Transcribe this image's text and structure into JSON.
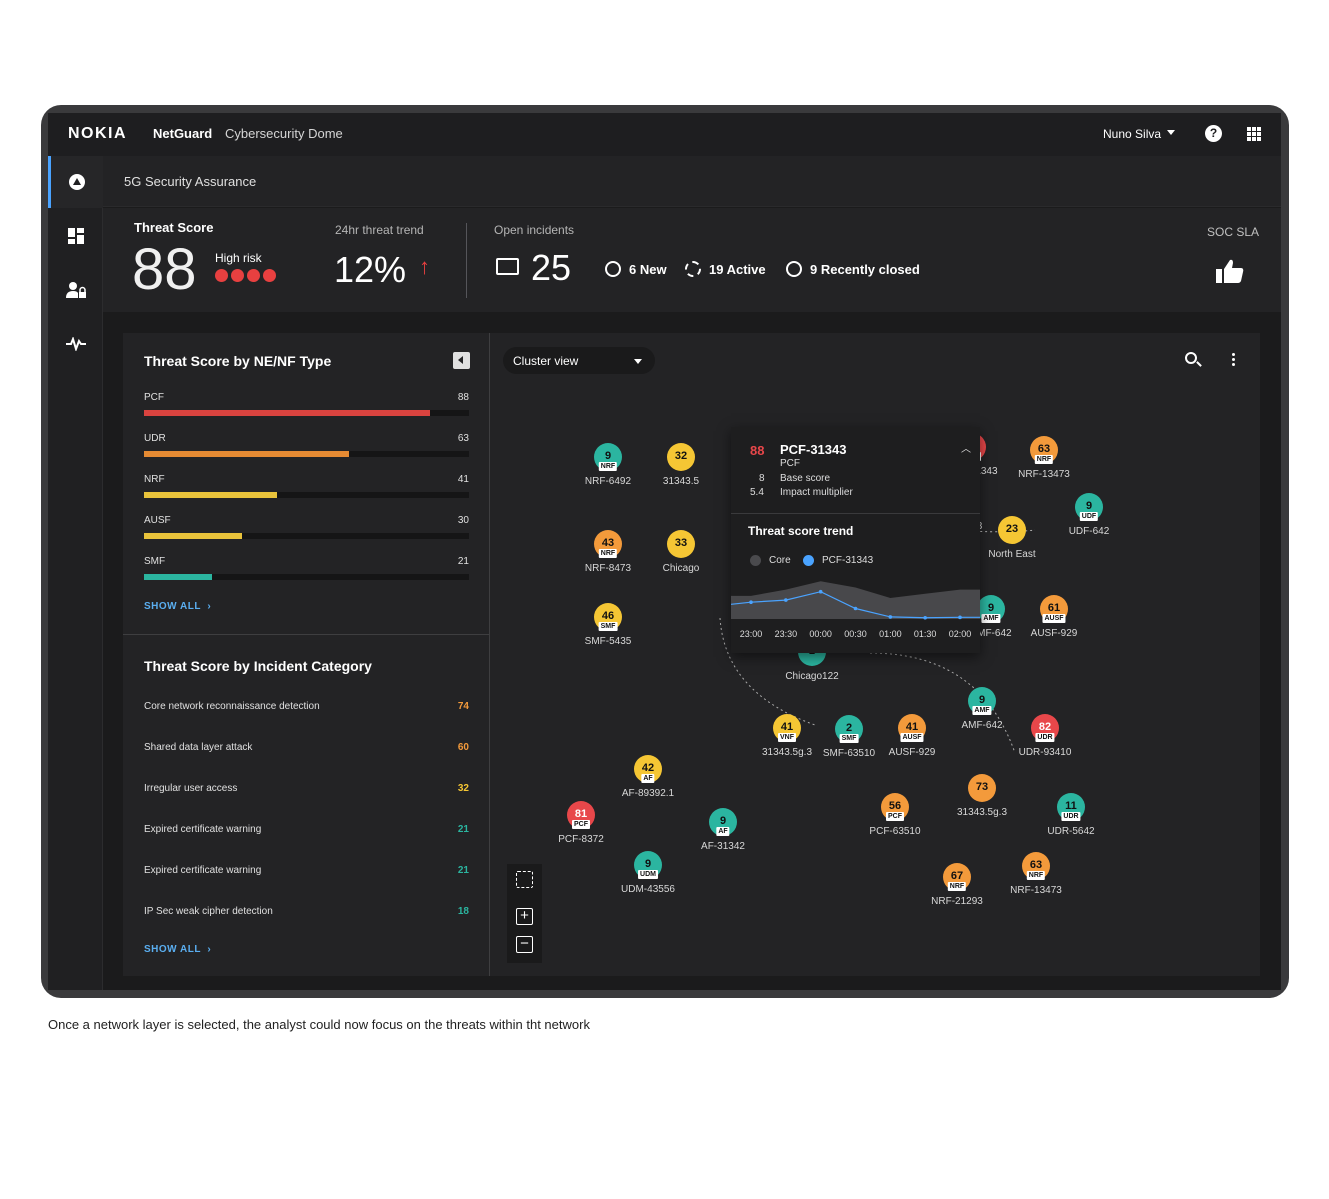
{
  "app": {
    "logo": "NOKIA",
    "product": "NetGuard",
    "product_sub": "Cybersecurity Dome",
    "user": "Nuno Silva",
    "help": "?"
  },
  "page": {
    "title": "5G Security Assurance"
  },
  "kpis": {
    "threat_score_label": "Threat Score",
    "threat_score": "88",
    "risk_label": "High risk",
    "trend_label": "24hr threat trend",
    "trend_value": "12%",
    "trend_arrow": "↑",
    "open_label": "Open incidents",
    "open_value": "25",
    "new": "6 New",
    "active": "19 Active",
    "closed": "9 Recently closed",
    "sla_label": "SOC SLA"
  },
  "ne_panel": {
    "title": "Threat Score by NE/NF Type",
    "show_all": "SHOW ALL",
    "rows": [
      {
        "label": "PCF",
        "value": 88,
        "color": "#d9433f"
      },
      {
        "label": "UDR",
        "value": 63,
        "color": "#e58a33"
      },
      {
        "label": "NRF",
        "value": 41,
        "color": "#e9c33b"
      },
      {
        "label": "AUSF",
        "value": 30,
        "color": "#e9c33b"
      },
      {
        "label": "SMF",
        "value": 21,
        "color": "#2bb5a0"
      }
    ]
  },
  "cat_panel": {
    "title": "Threat Score by Incident Category",
    "show_all": "SHOW ALL",
    "rows": [
      {
        "label": "Core network reconnaissance detection",
        "value": "74",
        "color": "#f39a3b"
      },
      {
        "label": "Shared data layer attack",
        "value": "60",
        "color": "#f39a3b"
      },
      {
        "label": "Irregular user access",
        "value": "32",
        "color": "#f5c634"
      },
      {
        "label": "Expired certificate warning",
        "value": "21",
        "color": "#2bb5a0"
      },
      {
        "label": "Expired certificate warning",
        "value": "21",
        "color": "#2bb5a0"
      },
      {
        "label": "IP Sec weak cipher detection",
        "value": "18",
        "color": "#2bb5a0"
      }
    ]
  },
  "map": {
    "view": "Cluster view",
    "zoom_in": "+",
    "zoom_out": "−",
    "nodes": [
      {
        "score": "9",
        "type": "NRF",
        "label": "NRF-6492",
        "color": "teal"
      },
      {
        "score": "32",
        "type": "",
        "label": "31343.5",
        "color": "yellow"
      },
      {
        "score": "43",
        "type": "NRF",
        "label": "NRF-8473",
        "color": "orange"
      },
      {
        "score": "33",
        "type": "",
        "label": "Chicago",
        "color": "yellow"
      },
      {
        "score": "46",
        "type": "SMF",
        "label": "SMF-5435",
        "color": "yellow"
      },
      {
        "score": "88",
        "type": "PCF",
        "label": "PCF-31343",
        "color": "red"
      },
      {
        "score": "63",
        "type": "NRF",
        "label": "NRF-13473",
        "color": "orange"
      },
      {
        "score": "9",
        "type": "UDF",
        "label": "UDF-642",
        "color": "teal"
      },
      {
        "score": "23",
        "type": "",
        "label": "North East",
        "color": "yellow"
      },
      {
        "score": "9",
        "type": "AMF",
        "label": "AMF-642",
        "color": "teal"
      },
      {
        "score": "61",
        "type": "AUSF",
        "label": "AUSF-929",
        "color": "orange"
      },
      {
        "score": "2",
        "type": "",
        "label": "Chicago122",
        "color": "teal"
      },
      {
        "score": "41",
        "type": "VNF",
        "label": "31343.5g.3",
        "color": "yellow"
      },
      {
        "score": "2",
        "type": "SMF",
        "label": "SMF-63510",
        "color": "teal"
      },
      {
        "score": "41",
        "type": "AUSF",
        "label": "AUSF-929",
        "color": "orange"
      },
      {
        "score": "9",
        "type": "AMF",
        "label": "AMF-642",
        "color": "teal"
      },
      {
        "score": "82",
        "type": "UDR",
        "label": "UDR-93410",
        "color": "red"
      },
      {
        "score": "42",
        "type": "AF",
        "label": "AF-89392.1",
        "color": "yellow"
      },
      {
        "score": "81",
        "type": "PCF",
        "label": "PCF-8372",
        "color": "red"
      },
      {
        "score": "9",
        "type": "AF",
        "label": "AF-31342",
        "color": "teal"
      },
      {
        "score": "56",
        "type": "PCF",
        "label": "PCF-63510",
        "color": "orange"
      },
      {
        "score": "73",
        "type": "",
        "label": "31343.5g.3",
        "color": "orange"
      },
      {
        "score": "11",
        "type": "UDR",
        "label": "UDR-5642",
        "color": "teal"
      },
      {
        "score": "9",
        "type": "UDM",
        "label": "UDM-43556",
        "color": "teal"
      },
      {
        "score": "67",
        "type": "NRF",
        "label": "NRF-21293",
        "color": "orange"
      },
      {
        "score": "63",
        "type": "NRF",
        "label": "NRF-13473",
        "color": "orange"
      }
    ],
    "partial_labels": [
      "293",
      "43"
    ]
  },
  "popup": {
    "score": "88",
    "name": "PCF-31343",
    "type": "PCF",
    "base_value": "8",
    "base_label": "Base score",
    "mult_value": "5.4",
    "mult_label": "Impact multiplier",
    "trend_title": "Threat score trend",
    "legend": [
      {
        "name": "Core",
        "color": "#4a4a4d"
      },
      {
        "name": "PCF-31343",
        "color": "#4aa3ff"
      }
    ],
    "chart_data": {
      "type": "line",
      "categories": [
        "23:00",
        "23:30",
        "00:00",
        "00:30",
        "01:00",
        "01:30",
        "02:00"
      ],
      "series": [
        {
          "name": "Core",
          "type": "area",
          "values": [
            0.55,
            0.7,
            0.9,
            0.75,
            0.5,
            0.6,
            0.7
          ]
        },
        {
          "name": "PCF-31343",
          "type": "line",
          "values": [
            0.4,
            0.45,
            0.65,
            0.25,
            0.05,
            0.03,
            0.04
          ]
        }
      ]
    }
  },
  "caption": "Once a network layer is selected, the analyst could now focus on the threats within tht network"
}
